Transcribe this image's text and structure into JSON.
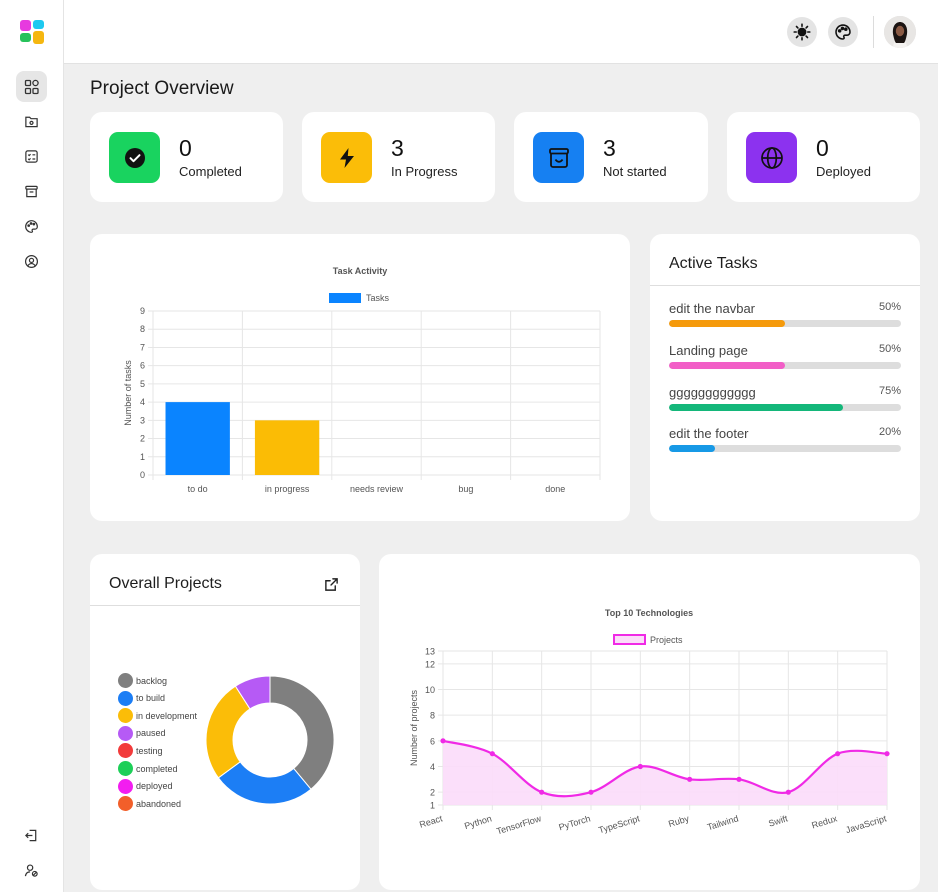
{
  "sidebar": {
    "logo_colors": [
      "#e73adf",
      "#1ec9f0",
      "#27c25b",
      "#f5b710"
    ],
    "icons": [
      "dashboard-icon",
      "folder-icon",
      "tasks-icon",
      "archive-icon",
      "palette-icon",
      "profile-icon"
    ],
    "bottom_icons": [
      "logout-icon",
      "user-settings-icon"
    ]
  },
  "topbar": {
    "icons": [
      "sun-icon",
      "palette-icon",
      "avatar"
    ]
  },
  "page_title": "Project Overview",
  "stats": [
    {
      "value": "0",
      "label": "Completed",
      "icon": "check-circle-icon",
      "color": "#19d35f"
    },
    {
      "value": "3",
      "label": "In Progress",
      "icon": "lightning-icon",
      "color": "#fbbd08"
    },
    {
      "value": "3",
      "label": "Not started",
      "icon": "inbox-icon",
      "color": "#1680f2"
    },
    {
      "value": "0",
      "label": "Deployed",
      "icon": "globe-icon",
      "color": "#8c32ef"
    }
  ],
  "active_tasks": {
    "title": "Active Tasks",
    "items": [
      {
        "name": "edit the navbar",
        "percent_label": "50%",
        "progress": 0.5,
        "color": "#f59a0b"
      },
      {
        "name": "Landing page",
        "percent_label": "50%",
        "progress": 0.5,
        "color": "#f25ec7"
      },
      {
        "name": "gggggggggggg",
        "percent_label": "75%",
        "progress": 0.75,
        "color": "#14b77a"
      },
      {
        "name": "edit the footer",
        "percent_label": "20%",
        "progress": 0.2,
        "color": "#1799e6"
      }
    ]
  },
  "overall_projects": {
    "title": "Overall Projects",
    "icon": "external-link-icon"
  },
  "chart_data": [
    {
      "type": "bar",
      "title": "Task Activity",
      "legend": "Tasks",
      "legend_position": "top",
      "ylabel": "Number of tasks",
      "xlabel": "",
      "categories": [
        "to do",
        "in progress",
        "needs review",
        "bug",
        "done"
      ],
      "values": [
        4,
        3,
        0,
        0,
        0
      ],
      "colors": [
        "#0a84ff",
        "#fbbc05",
        "#0a84ff",
        "#0a84ff",
        "#0a84ff"
      ],
      "legend_color": "#0a84ff",
      "ylim": [
        0,
        9
      ],
      "yticks": [
        "0",
        "1",
        "2",
        "3",
        "4",
        "5",
        "6",
        "7",
        "8",
        "9"
      ],
      "grid": true
    },
    {
      "type": "pie",
      "donut": true,
      "legend_position": "left",
      "labels": [
        "backlog",
        "to build",
        "in development",
        "paused",
        "testing",
        "completed",
        "deployed",
        "abandoned"
      ],
      "values": [
        3,
        2,
        2,
        0.7,
        0,
        0,
        0,
        0
      ],
      "colors": [
        "#7f7f7f",
        "#1c7ef5",
        "#fbbd08",
        "#b65af5",
        "#f23b3b",
        "#1dcf58",
        "#f21df0",
        "#f25f2a"
      ]
    },
    {
      "type": "area",
      "title": "Top 10 Technologies",
      "legend": "Projects",
      "legend_position": "top",
      "ylabel": "Number of projects",
      "xlabel": "",
      "categories": [
        "React",
        "Python",
        "TensorFlow",
        "PyTorch",
        "TypeScript",
        "Ruby",
        "Tailwind",
        "Swift",
        "Redux",
        "JavaScript"
      ],
      "values": [
        6,
        5,
        2,
        2,
        4,
        3,
        3,
        2,
        5,
        5
      ],
      "color": "#f02ae6",
      "fill_color": "#fbdcf9",
      "ylim": [
        1,
        13
      ],
      "yticks": [
        "1",
        "2",
        "4",
        "6",
        "8",
        "10",
        "12",
        "13"
      ],
      "grid": true
    }
  ]
}
